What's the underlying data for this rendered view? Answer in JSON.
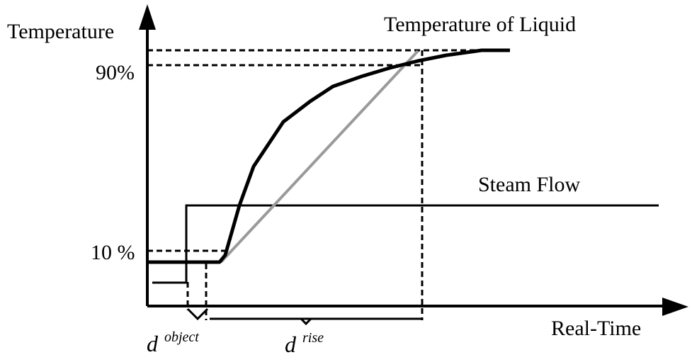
{
  "axes": {
    "y_label": "Temperature",
    "x_label": "Real-Time"
  },
  "levels": {
    "high_label": "90%",
    "low_label": "10 %"
  },
  "series": {
    "liquid_label": "Temperature of Liquid",
    "steam_label": "Steam Flow"
  },
  "delays": {
    "object_base": "d",
    "object_sup": "object",
    "rise_base": "d",
    "rise_sup": "rise"
  }
}
